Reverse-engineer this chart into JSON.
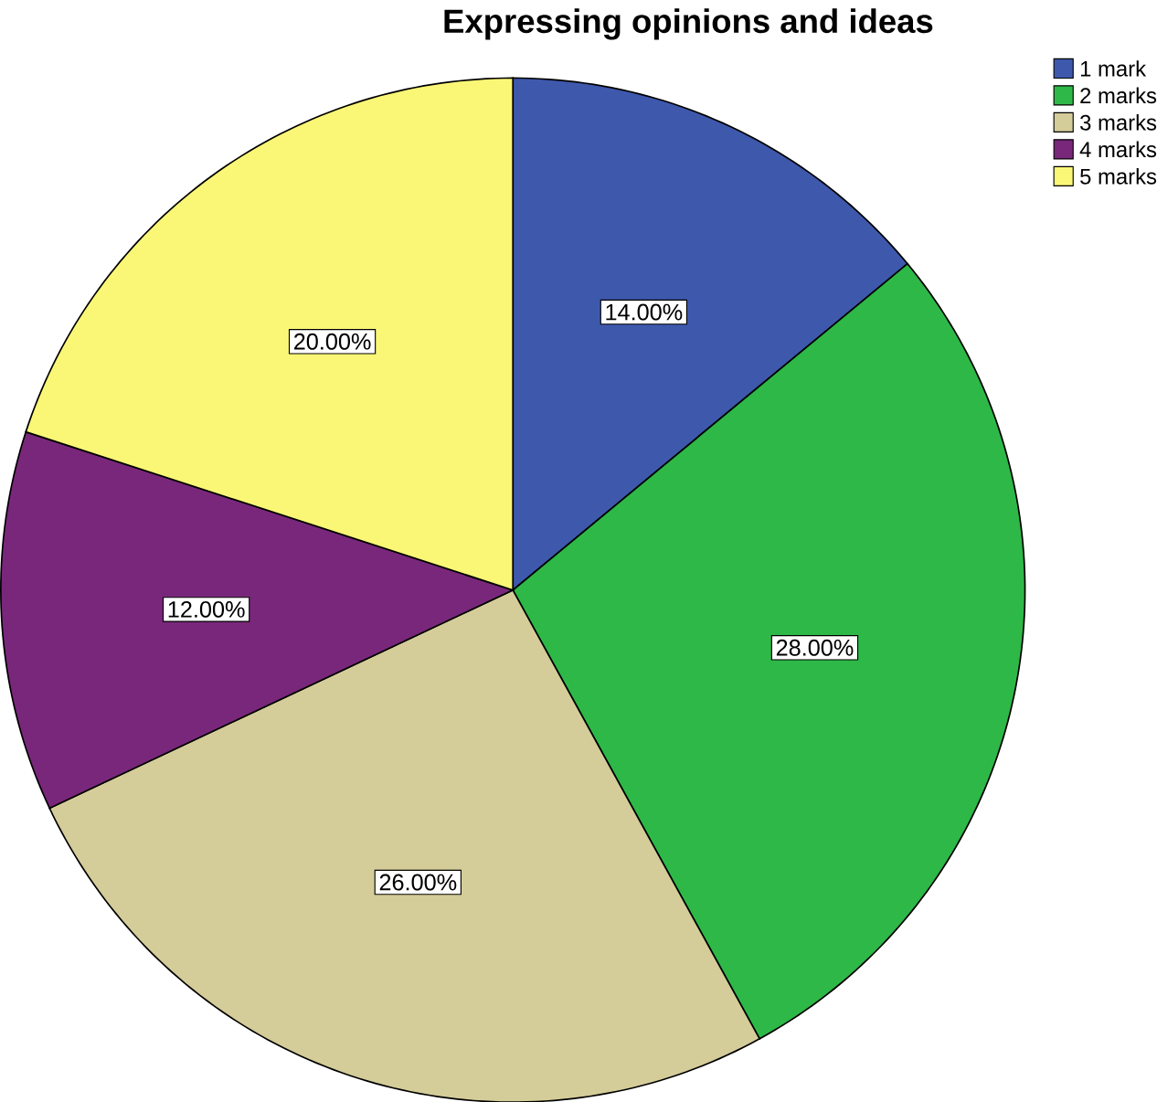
{
  "chart_data": {
    "type": "pie",
    "title": "Expressing opinions and ideas",
    "categories": [
      "1 mark",
      "2 marks",
      "3 marks",
      "4 marks",
      "5 marks"
    ],
    "values": [
      14,
      28,
      26,
      12,
      20
    ],
    "value_labels": [
      "14.00%",
      "28.00%",
      "26.00%",
      "12.00%",
      "20.00%"
    ],
    "colors": [
      "#3e58ac",
      "#2eb848",
      "#d4cc99",
      "#79277b",
      "#fbf776"
    ],
    "legend": "top right"
  }
}
